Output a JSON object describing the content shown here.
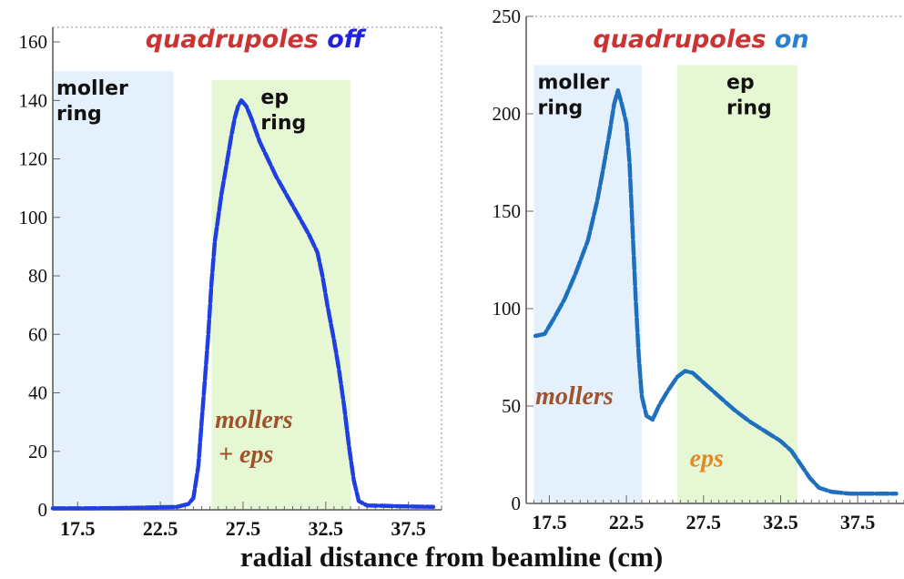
{
  "xlabel": "radial distance from beamline (cm)",
  "chart_data": [
    {
      "type": "line",
      "title_parts": [
        {
          "text": "quadrupoles ",
          "color": "#cc3333"
        },
        {
          "text": "off",
          "color": "#2222dd"
        }
      ],
      "xlim": [
        16.0,
        39.5
      ],
      "ylim": [
        0,
        165
      ],
      "x_ticks": [
        "17.5",
        "22.5",
        "27.5",
        "32.5",
        "37.5"
      ],
      "x_tick_values": [
        17.5,
        22.5,
        27.5,
        32.5,
        37.5
      ],
      "y_ticks": [
        "0",
        "20",
        "40",
        "60",
        "80",
        "100",
        "120",
        "140",
        "160"
      ],
      "y_tick_values": [
        0,
        20,
        40,
        60,
        80,
        100,
        120,
        140,
        160
      ],
      "regions": [
        {
          "label": [
            "moller",
            "ring"
          ],
          "x": [
            16.0,
            23.3
          ],
          "y_top": 150,
          "color": "#e4f0fb"
        },
        {
          "label": [
            "ep",
            "ring"
          ],
          "x": [
            25.6,
            34.0
          ],
          "y_top": 147,
          "color": "#e6f7d4"
        }
      ],
      "annotations": [
        {
          "lines": [
            "mollers",
            "+ eps"
          ],
          "color": "#a0522d",
          "x": 25.8,
          "y": 28
        }
      ],
      "series": [
        {
          "color": "#1f3fe0",
          "points": [
            [
              16.0,
              0.5
            ],
            [
              18.0,
              0.5
            ],
            [
              20.0,
              0.6
            ],
            [
              22.0,
              0.8
            ],
            [
              23.5,
              1.0
            ],
            [
              24.2,
              2
            ],
            [
              24.5,
              4
            ],
            [
              24.8,
              15
            ],
            [
              25.0,
              30
            ],
            [
              25.2,
              45
            ],
            [
              25.4,
              60
            ],
            [
              25.6,
              78
            ],
            [
              25.8,
              92
            ],
            [
              26.0,
              100
            ],
            [
              26.2,
              108
            ],
            [
              26.5,
              118
            ],
            [
              26.8,
              128
            ],
            [
              27.0,
              134
            ],
            [
              27.2,
              138
            ],
            [
              27.4,
              140
            ],
            [
              27.7,
              138
            ],
            [
              28.0,
              134
            ],
            [
              28.5,
              126
            ],
            [
              29.0,
              120
            ],
            [
              29.5,
              114
            ],
            [
              30.0,
              109
            ],
            [
              30.5,
              104
            ],
            [
              31.0,
              99
            ],
            [
              31.5,
              94
            ],
            [
              32.0,
              88
            ],
            [
              32.3,
              80
            ],
            [
              32.6,
              70
            ],
            [
              33.0,
              58
            ],
            [
              33.3,
              48
            ],
            [
              33.6,
              36
            ],
            [
              33.9,
              22
            ],
            [
              34.2,
              10
            ],
            [
              34.5,
              3
            ],
            [
              35.0,
              1.5
            ],
            [
              37.0,
              1.2
            ],
            [
              39.0,
              1.0
            ]
          ]
        }
      ]
    },
    {
      "type": "line",
      "title_parts": [
        {
          "text": "quadrupoles ",
          "color": "#cc3333"
        },
        {
          "text": "on",
          "color": "#2a7fd0"
        }
      ],
      "xlim": [
        16.0,
        40.5
      ],
      "ylim": [
        0,
        250
      ],
      "x_ticks": [
        "17.5",
        "22.5",
        "27.5",
        "32.5",
        "37.5"
      ],
      "x_tick_values": [
        17.5,
        22.5,
        27.5,
        32.5,
        37.5
      ],
      "y_ticks": [
        "0",
        "50",
        "100",
        "150",
        "200",
        "250"
      ],
      "y_tick_values": [
        0,
        50,
        100,
        150,
        200,
        250
      ],
      "regions": [
        {
          "label": [
            "moller",
            "ring"
          ],
          "x": [
            16.5,
            23.5
          ],
          "y_top": 225,
          "color": "#e4f0fb"
        },
        {
          "label": [
            "ep",
            "ring"
          ],
          "x": [
            25.8,
            33.6
          ],
          "y_top": 225,
          "color": "#e6f7d4"
        }
      ],
      "annotations": [
        {
          "lines": [
            "mollers"
          ],
          "color": "#a0522d",
          "x": 16.6,
          "y": 51
        },
        {
          "lines": [
            "eps"
          ],
          "color": "#e08a2a",
          "x": 26.6,
          "y": 19
        }
      ],
      "series": [
        {
          "color": "#1f6fbf",
          "points": [
            [
              16.6,
              86
            ],
            [
              17.2,
              87
            ],
            [
              17.8,
              95
            ],
            [
              18.5,
              105
            ],
            [
              19.2,
              118
            ],
            [
              20.0,
              135
            ],
            [
              20.6,
              155
            ],
            [
              21.0,
              172
            ],
            [
              21.4,
              190
            ],
            [
              21.7,
              205
            ],
            [
              21.95,
              212
            ],
            [
              22.2,
              205
            ],
            [
              22.5,
              195
            ],
            [
              22.7,
              175
            ],
            [
              22.9,
              140
            ],
            [
              23.1,
              105
            ],
            [
              23.3,
              75
            ],
            [
              23.5,
              55
            ],
            [
              23.8,
              45
            ],
            [
              24.2,
              43
            ],
            [
              24.6,
              50
            ],
            [
              25.2,
              58
            ],
            [
              25.8,
              65
            ],
            [
              26.3,
              68
            ],
            [
              26.8,
              67
            ],
            [
              27.5,
              62
            ],
            [
              28.5,
              55
            ],
            [
              29.5,
              48
            ],
            [
              30.5,
              42
            ],
            [
              31.5,
              37
            ],
            [
              32.5,
              32
            ],
            [
              33.2,
              27
            ],
            [
              33.8,
              20
            ],
            [
              34.4,
              13
            ],
            [
              35.0,
              8
            ],
            [
              35.8,
              6
            ],
            [
              37.0,
              5
            ],
            [
              38.5,
              5
            ],
            [
              40.0,
              5
            ]
          ]
        }
      ]
    }
  ]
}
